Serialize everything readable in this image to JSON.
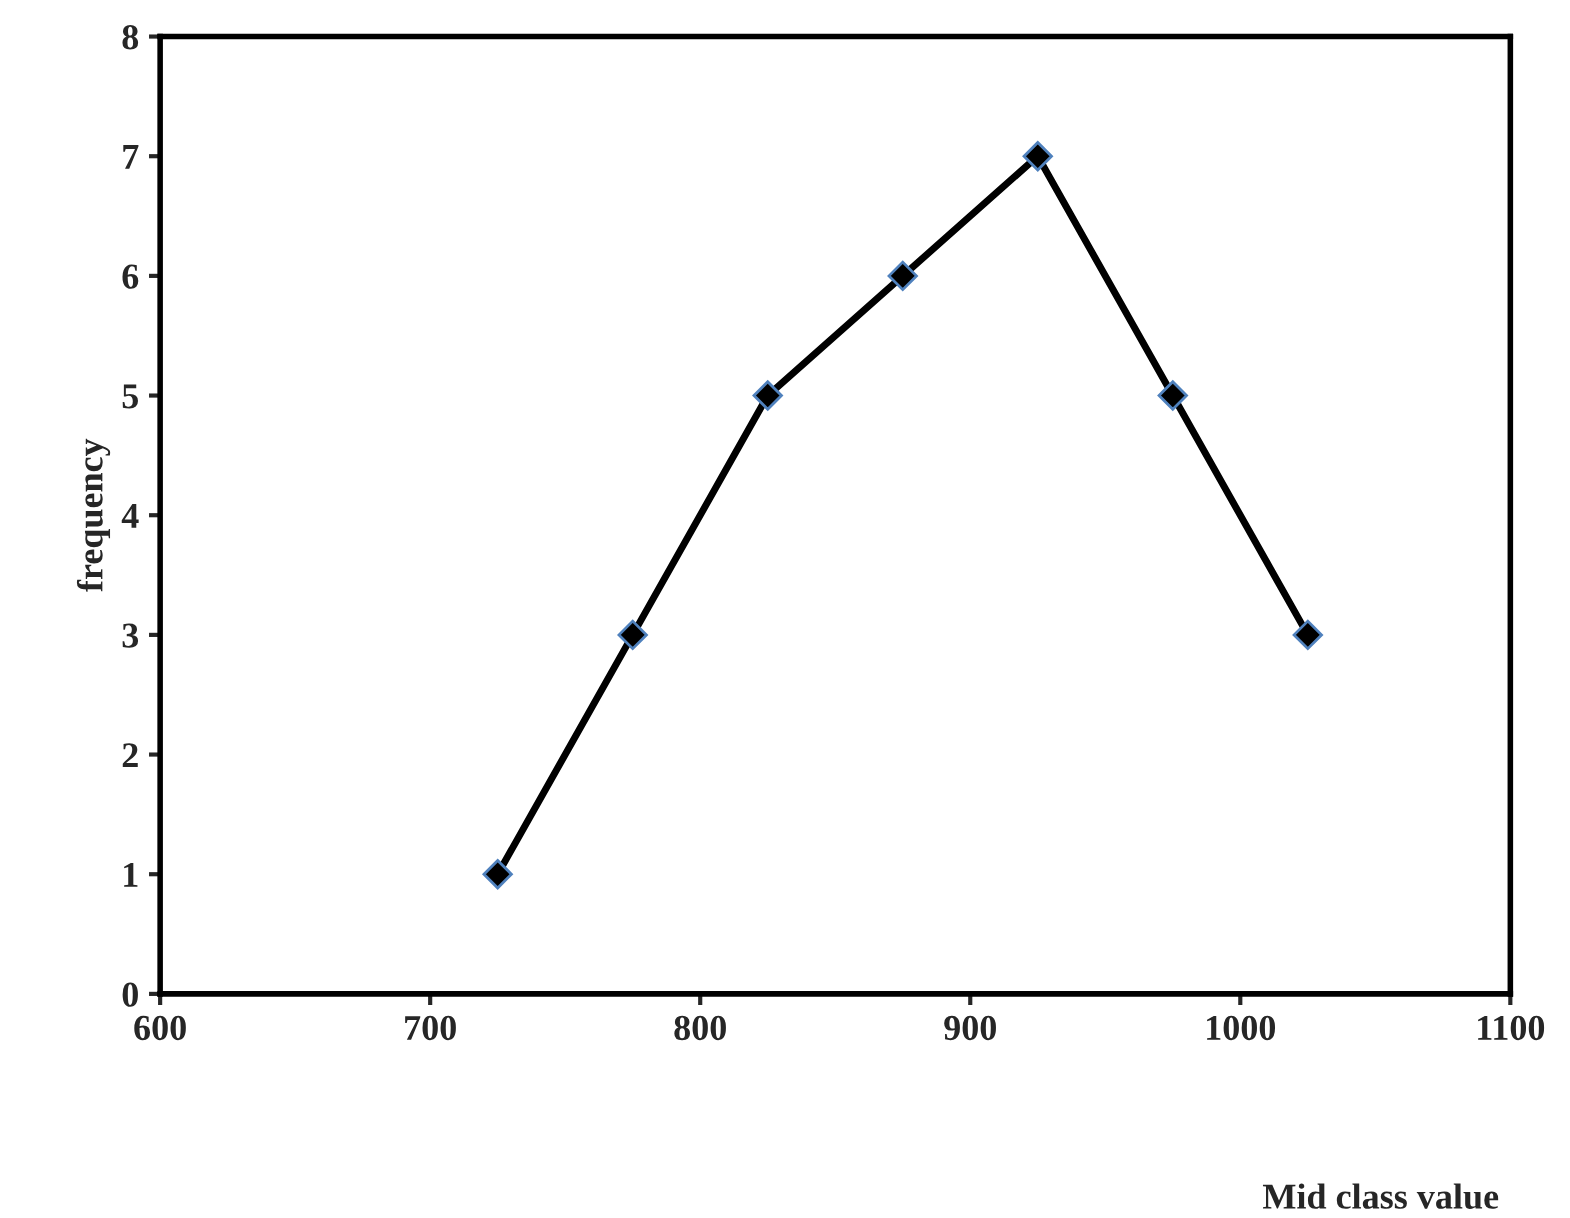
{
  "chart_data": {
    "type": "line",
    "xlabel": "Mid class value",
    "ylabel": "frequency",
    "x": [
      725,
      775,
      825,
      875,
      925,
      975,
      1025
    ],
    "series": [
      {
        "color": "#000000",
        "values": [
          1,
          3,
          5,
          6,
          7,
          5,
          3
        ]
      }
    ],
    "xlim": [
      600,
      1100
    ],
    "xticks": [
      600,
      700,
      800,
      900,
      1000,
      1100
    ],
    "ylim": [
      0,
      8
    ],
    "yticks": [
      0,
      1,
      2,
      3,
      4,
      5,
      6,
      7,
      8
    ],
    "marker": "diamond",
    "line_style": "solid"
  }
}
